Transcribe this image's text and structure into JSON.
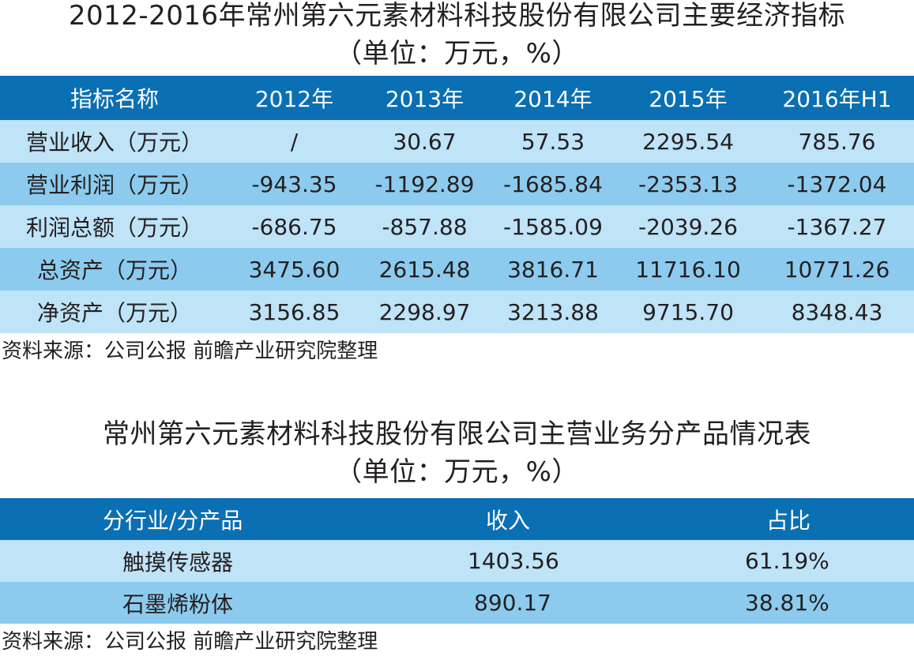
{
  "table1": {
    "title": "2012-2016年常州第六元素材料科技股份有限公司主要经济指标",
    "unit": "（单位：万元，%）",
    "headers": [
      "指标名称",
      "2012年",
      "2013年",
      "2014年",
      "2015年",
      "2016年H1"
    ],
    "rows": [
      [
        "营业收入（万元）",
        "/",
        "30.67",
        "57.53",
        "2295.54",
        "785.76"
      ],
      [
        "营业利润（万元）",
        "-943.35",
        "-1192.89",
        "-1685.84",
        "-2353.13",
        "-1372.04"
      ],
      [
        "利润总额（万元）",
        "-686.75",
        "-857.88",
        "-1585.09",
        "-2039.26",
        "-1367.27"
      ],
      [
        "总资产（万元）",
        "3475.60",
        "2615.48",
        "3816.71",
        "11716.10",
        "10771.26"
      ],
      [
        "净资产（万元）",
        "3156.85",
        "2298.97",
        "3213.88",
        "9715.70",
        "8348.43"
      ]
    ],
    "source": "资料来源：公司公报 前瞻产业研究院整理"
  },
  "table2": {
    "title": "常州第六元素材料科技股份有限公司主营业务分产品情况表",
    "unit": "（单位：万元，%）",
    "headers": [
      "分行业/分产品",
      "收入",
      "占比"
    ],
    "rows": [
      [
        "触摸传感器",
        "1403.56",
        "61.19%"
      ],
      [
        "石墨烯粉体",
        "890.17",
        "38.81%"
      ]
    ],
    "source": "资料来源：公司公报 前瞻产业研究院整理"
  },
  "colors": {
    "header_bg": "#0b6fb3",
    "row_light": "#bfe3f7",
    "row_mid": "#8ccbee"
  }
}
